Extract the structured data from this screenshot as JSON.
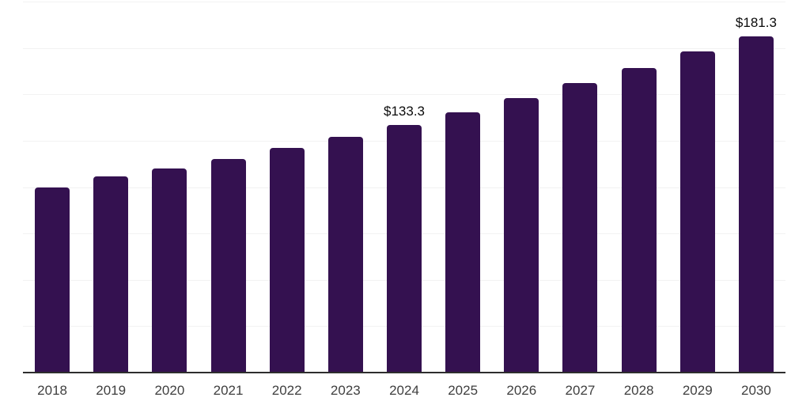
{
  "chart": {
    "colors": {
      "background": "#ffffff",
      "bar_fill": "#341150",
      "axis_line": "#2e2e2e",
      "gridline": "#f2f2f2",
      "x_tick_label": "#3f3f3f",
      "value_label": "#0b0b0b"
    }
  },
  "chart_data": {
    "type": "bar",
    "title": "",
    "xlabel": "",
    "ylabel": "",
    "categories": [
      "2018",
      "2019",
      "2020",
      "2021",
      "2022",
      "2023",
      "2024",
      "2025",
      "2026",
      "2027",
      "2028",
      "2029",
      "2030"
    ],
    "values": [
      99.9,
      105.6,
      110.2,
      115.1,
      121.2,
      127.2,
      133.3,
      140.4,
      148.0,
      156.1,
      164.2,
      173.1,
      181.3
    ],
    "unit_prefix": "$",
    "visible_value_labels": [
      {
        "category": "2024",
        "text": "$133.3"
      },
      {
        "category": "2030",
        "text": "$181.3"
      }
    ],
    "ylim": [
      0,
      200
    ],
    "gridline_step": 25,
    "y_axis_tick_labels_shown": false,
    "grid": "horizontal",
    "legend_position": "none"
  }
}
